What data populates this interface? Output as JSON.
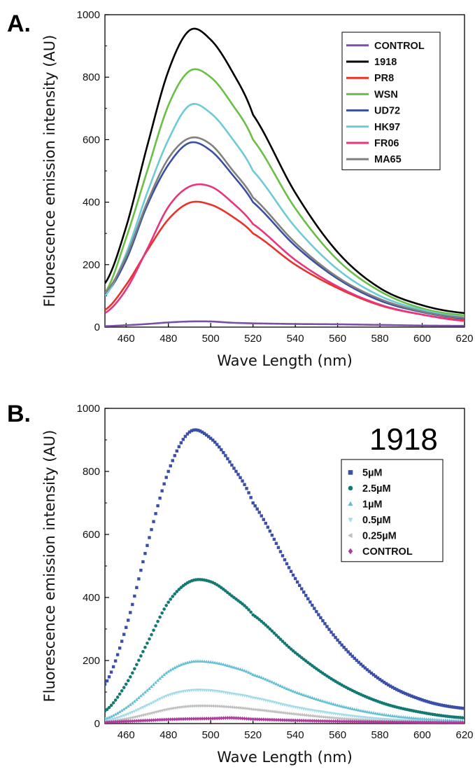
{
  "chart_data": [
    {
      "type": "line",
      "panel_label": "A.",
      "xlabel": "Wave Length (nm)",
      "ylabel": "Fluorescence emission intensity (AU)",
      "xlim": [
        450,
        620
      ],
      "ylim": [
        0,
        1000
      ],
      "xticks": [
        "460",
        "480",
        "500",
        "520",
        "540",
        "560",
        "580",
        "600",
        "620"
      ],
      "yticks": [
        "0",
        "200",
        "400",
        "600",
        "800",
        "1000"
      ],
      "legend_position": "top-right",
      "grid": false,
      "series": [
        {
          "name": "CONTROL",
          "color": "#7b4fa8",
          "marker": "line",
          "points": [
            [
              450,
              3
            ],
            [
              460,
              6
            ],
            [
              470,
              10
            ],
            [
              480,
              15
            ],
            [
              490,
              18
            ],
            [
              500,
              18
            ],
            [
              510,
              14
            ],
            [
              520,
              12
            ],
            [
              540,
              10
            ],
            [
              560,
              9
            ],
            [
              580,
              7
            ],
            [
              600,
              5
            ],
            [
              620,
              4
            ]
          ]
        },
        {
          "name": "1918",
          "color": "#000000",
          "marker": "line",
          "points": [
            [
              450,
              140
            ],
            [
              460,
              320
            ],
            [
              470,
              580
            ],
            [
              480,
              820
            ],
            [
              490,
              950
            ],
            [
              500,
              920
            ],
            [
              510,
              820
            ],
            [
              520,
              680
            ],
            [
              540,
              430
            ],
            [
              560,
              240
            ],
            [
              580,
              125
            ],
            [
              600,
              70
            ],
            [
              620,
              45
            ]
          ]
        },
        {
          "name": "PR8",
          "color": "#e8322a",
          "marker": "line",
          "points": [
            [
              450,
              55
            ],
            [
              460,
              135
            ],
            [
              470,
              245
            ],
            [
              480,
              345
            ],
            [
              490,
              398
            ],
            [
              500,
              392
            ],
            [
              510,
              355
            ],
            [
              520,
              300
            ],
            [
              540,
              200
            ],
            [
              560,
              125
            ],
            [
              580,
              70
            ],
            [
              600,
              40
            ],
            [
              620,
              22
            ]
          ]
        },
        {
          "name": "WSN",
          "color": "#6abf45",
          "marker": "line",
          "points": [
            [
              450,
              110
            ],
            [
              460,
              285
            ],
            [
              470,
              500
            ],
            [
              480,
              710
            ],
            [
              490,
              820
            ],
            [
              500,
              800
            ],
            [
              510,
              715
            ],
            [
              520,
              600
            ],
            [
              540,
              380
            ],
            [
              560,
              215
            ],
            [
              580,
              115
            ],
            [
              600,
              60
            ],
            [
              620,
              38
            ]
          ]
        },
        {
          "name": "UD72",
          "color": "#3a4fa3",
          "marker": "line",
          "points": [
            [
              450,
              105
            ],
            [
              460,
              215
            ],
            [
              470,
              390
            ],
            [
              480,
              520
            ],
            [
              490,
              590
            ],
            [
              500,
              565
            ],
            [
              510,
              490
            ],
            [
              520,
              400
            ],
            [
              540,
              260
            ],
            [
              560,
              155
            ],
            [
              580,
              85
            ],
            [
              600,
              48
            ],
            [
              620,
              28
            ]
          ]
        },
        {
          "name": "HK97",
          "color": "#6ccbd6",
          "marker": "line",
          "points": [
            [
              450,
              100
            ],
            [
              460,
              235
            ],
            [
              470,
              430
            ],
            [
              480,
              600
            ],
            [
              490,
              710
            ],
            [
              500,
              685
            ],
            [
              510,
              605
            ],
            [
              520,
              500
            ],
            [
              540,
              320
            ],
            [
              560,
              185
            ],
            [
              580,
              100
            ],
            [
              600,
              55
            ],
            [
              620,
              32
            ]
          ]
        },
        {
          "name": "FR06",
          "color": "#e8357e",
          "marker": "line",
          "points": [
            [
              450,
              45
            ],
            [
              460,
              120
            ],
            [
              470,
              250
            ],
            [
              480,
              385
            ],
            [
              490,
              450
            ],
            [
              500,
              450
            ],
            [
              510,
              400
            ],
            [
              520,
              330
            ],
            [
              540,
              215
            ],
            [
              560,
              130
            ],
            [
              580,
              72
            ],
            [
              600,
              40
            ],
            [
              620,
              20
            ]
          ]
        },
        {
          "name": "MA65",
          "color": "#808080",
          "marker": "line",
          "points": [
            [
              450,
              110
            ],
            [
              460,
              225
            ],
            [
              470,
              400
            ],
            [
              480,
              540
            ],
            [
              490,
              605
            ],
            [
              500,
              585
            ],
            [
              510,
              505
            ],
            [
              520,
              415
            ],
            [
              540,
              270
            ],
            [
              560,
              160
            ],
            [
              580,
              90
            ],
            [
              600,
              50
            ],
            [
              620,
              30
            ]
          ]
        }
      ]
    },
    {
      "type": "scatter",
      "panel_label": "B.",
      "annotation": "1918",
      "xlabel": "Wave Length (nm)",
      "ylabel": "Fluorescence emission intensity (AU)",
      "xlim": [
        450,
        620
      ],
      "ylim": [
        0,
        1000
      ],
      "xticks": [
        "460",
        "480",
        "500",
        "520",
        "540",
        "560",
        "580",
        "600",
        "620"
      ],
      "yticks": [
        "0",
        "200",
        "400",
        "600",
        "800",
        "1000"
      ],
      "legend_position": "top-right",
      "grid": false,
      "series": [
        {
          "name": "5µM",
          "color": "#3b4fa8",
          "marker": "square",
          "points": [
            [
              450,
              125
            ],
            [
              460,
              305
            ],
            [
              470,
              565
            ],
            [
              480,
              800
            ],
            [
              490,
              925
            ],
            [
              500,
              905
            ],
            [
              510,
              820
            ],
            [
              520,
              700
            ],
            [
              540,
              460
            ],
            [
              560,
              265
            ],
            [
              580,
              140
            ],
            [
              600,
              75
            ],
            [
              620,
              48
            ]
          ]
        },
        {
          "name": "2.5µM",
          "color": "#137a73",
          "marker": "circle",
          "points": [
            [
              450,
              40
            ],
            [
              460,
              125
            ],
            [
              470,
              255
            ],
            [
              480,
              385
            ],
            [
              490,
              450
            ],
            [
              500,
              450
            ],
            [
              510,
              405
            ],
            [
              520,
              345
            ],
            [
              540,
              225
            ],
            [
              560,
              130
            ],
            [
              580,
              68
            ],
            [
              600,
              35
            ],
            [
              620,
              18
            ]
          ]
        },
        {
          "name": "1µM",
          "color": "#62bfd6",
          "marker": "triangle-up",
          "points": [
            [
              450,
              15
            ],
            [
              460,
              50
            ],
            [
              470,
              105
            ],
            [
              480,
              165
            ],
            [
              490,
              195
            ],
            [
              500,
              195
            ],
            [
              510,
              180
            ],
            [
              520,
              155
            ],
            [
              540,
              100
            ],
            [
              560,
              58
            ],
            [
              580,
              30
            ],
            [
              600,
              15
            ],
            [
              620,
              8
            ]
          ]
        },
        {
          "name": "0.5µM",
          "color": "#a3dbe8",
          "marker": "triangle-down",
          "points": [
            [
              450,
              8
            ],
            [
              460,
              28
            ],
            [
              470,
              58
            ],
            [
              480,
              90
            ],
            [
              490,
              105
            ],
            [
              500,
              105
            ],
            [
              510,
              95
            ],
            [
              520,
              82
            ],
            [
              540,
              52
            ],
            [
              560,
              30
            ],
            [
              580,
              15
            ],
            [
              600,
              8
            ],
            [
              620,
              4
            ]
          ]
        },
        {
          "name": "0.25µM",
          "color": "#c0c0c0",
          "marker": "triangle-left",
          "points": [
            [
              450,
              5
            ],
            [
              460,
              15
            ],
            [
              470,
              30
            ],
            [
              480,
              46
            ],
            [
              490,
              55
            ],
            [
              500,
              56
            ],
            [
              510,
              52
            ],
            [
              520,
              45
            ],
            [
              540,
              30
            ],
            [
              560,
              17
            ],
            [
              580,
              9
            ],
            [
              600,
              5
            ],
            [
              620,
              3
            ]
          ]
        },
        {
          "name": "CONTROL",
          "color": "#b03a9c",
          "marker": "diamond",
          "points": [
            [
              450,
              4
            ],
            [
              460,
              7
            ],
            [
              470,
              10
            ],
            [
              480,
              13
            ],
            [
              490,
              15
            ],
            [
              500,
              16
            ],
            [
              510,
              18
            ],
            [
              520,
              14
            ],
            [
              540,
              10
            ],
            [
              560,
              7
            ],
            [
              580,
              5
            ],
            [
              600,
              4
            ],
            [
              620,
              3
            ]
          ]
        }
      ]
    }
  ]
}
